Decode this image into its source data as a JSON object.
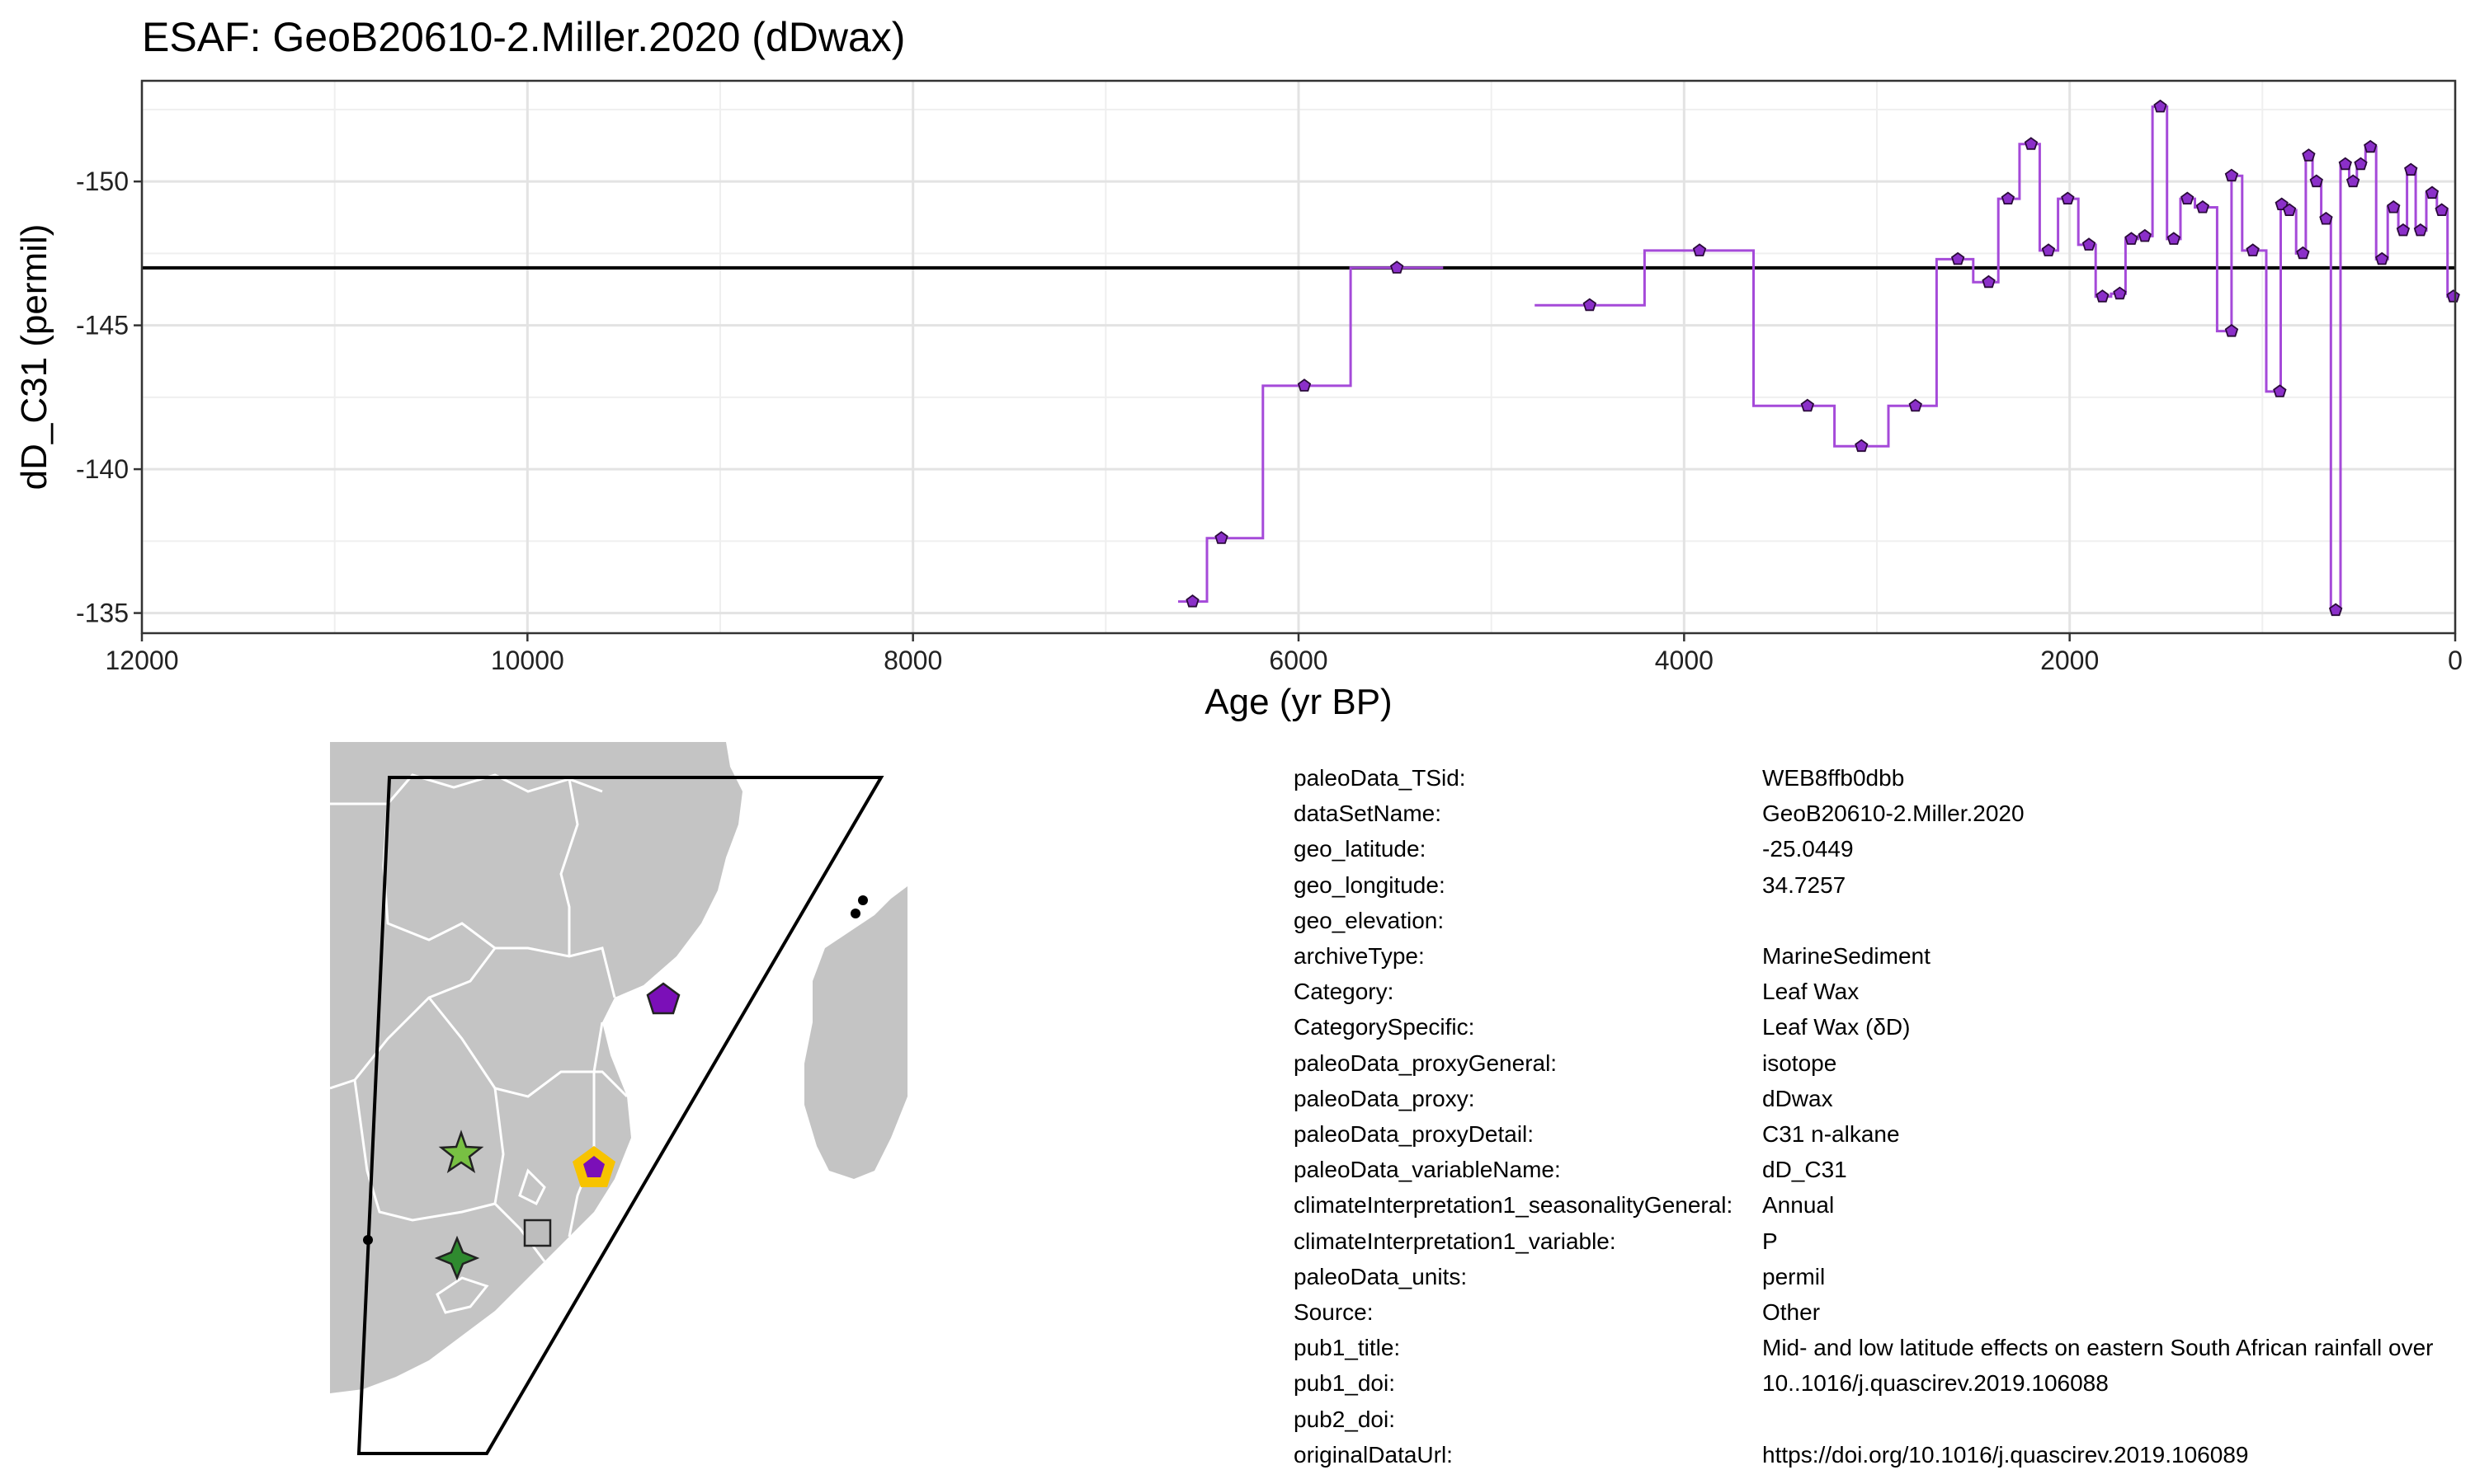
{
  "chart_data": {
    "type": "line",
    "title": "ESAF: GeoB20610-2.Miller.2020 (dDwax)",
    "xlabel": "Age (yr BP)",
    "ylabel": "dD_C31 (permil)",
    "xlim": [
      12000,
      0
    ],
    "ylim": [
      -134.3,
      -153.5
    ],
    "x_ticks": [
      "12000",
      "10000",
      "8000",
      "6000",
      "4000",
      "2000",
      "0"
    ],
    "y_ticks": [
      "-150",
      "-145",
      "-140",
      "-135"
    ],
    "grid": true,
    "x_reversed": true,
    "y_reversed": true,
    "reference_line": -147.0,
    "series": [
      {
        "color": "#8b2fc9",
        "points": [
          [
            6550,
            -135.4
          ],
          [
            6400,
            -137.6
          ],
          [
            5970,
            -142.9
          ],
          [
            5490,
            -147.0
          ],
          [
            4490,
            -145.7
          ],
          [
            3920,
            -147.6
          ],
          [
            3360,
            -142.2
          ],
          [
            3080,
            -140.8
          ],
          [
            2800,
            -142.2
          ],
          [
            2580,
            -147.3
          ],
          [
            2420,
            -146.5
          ],
          [
            2320,
            -149.4
          ],
          [
            2200,
            -151.3
          ],
          [
            2110,
            -147.6
          ],
          [
            2010,
            -149.4
          ],
          [
            1900,
            -147.8
          ],
          [
            1830,
            -146.0
          ],
          [
            1740,
            -146.1
          ],
          [
            1680,
            -148.0
          ],
          [
            1610,
            -148.1
          ],
          [
            1530,
            -152.6
          ],
          [
            1460,
            -148.0
          ],
          [
            1390,
            -149.4
          ],
          [
            1310,
            -149.1
          ],
          [
            1160,
            -144.8
          ],
          [
            1160,
            -150.2
          ],
          [
            1050,
            -147.6
          ],
          [
            910,
            -142.7
          ],
          [
            900,
            -149.2
          ],
          [
            860,
            -149.0
          ],
          [
            790,
            -147.5
          ],
          [
            760,
            -150.9
          ],
          [
            720,
            -150.0
          ],
          [
            670,
            -148.7
          ],
          [
            620,
            -135.1
          ],
          [
            570,
            -150.6
          ],
          [
            530,
            -150.0
          ],
          [
            490,
            -150.6
          ],
          [
            440,
            -151.2
          ],
          [
            380,
            -147.3
          ],
          [
            320,
            -149.1
          ],
          [
            270,
            -148.3
          ],
          [
            230,
            -150.4
          ],
          [
            180,
            -148.3
          ],
          [
            120,
            -149.6
          ],
          [
            70,
            -149.0
          ],
          [
            10,
            -146.0
          ]
        ]
      }
    ]
  },
  "map": {
    "legend": [
      {
        "icon": "purple-pentagon-marker",
        "color": "#7b0fb8"
      },
      {
        "icon": "highlighted-pentagon-marker",
        "color": "#7b0fb8",
        "outline": "#f7c300"
      },
      {
        "icon": "light-green-star-marker",
        "color": "#78c043"
      },
      {
        "icon": "dark-green-four-point-star-marker",
        "color": "#2f8a2f"
      },
      {
        "icon": "grey-square-marker",
        "color": "#bdbdbd"
      }
    ],
    "land_color": "#c4c4c4"
  },
  "metadata": [
    {
      "key": "paleoData_TSid:",
      "value": "WEB8ffb0dbb"
    },
    {
      "key": "dataSetName:",
      "value": "GeoB20610-2.Miller.2020"
    },
    {
      "key": "geo_latitude:",
      "value": "-25.0449"
    },
    {
      "key": "geo_longitude:",
      "value": "34.7257"
    },
    {
      "key": "geo_elevation:",
      "value": ""
    },
    {
      "key": "archiveType:",
      "value": "MarineSediment"
    },
    {
      "key": "Category:",
      "value": "Leaf Wax"
    },
    {
      "key": "CategorySpecific:",
      "value": "Leaf Wax (δD)"
    },
    {
      "key": "paleoData_proxyGeneral:",
      "value": "isotope"
    },
    {
      "key": "paleoData_proxy:",
      "value": "dDwax"
    },
    {
      "key": "paleoData_proxyDetail:",
      "value": "C31 n-alkane"
    },
    {
      "key": "paleoData_variableName:",
      "value": "dD_C31"
    },
    {
      "key": "climateInterpretation1_seasonalityGeneral:",
      "value": "Annual"
    },
    {
      "key": "climateInterpretation1_variable:",
      "value": "P"
    },
    {
      "key": "paleoData_units:",
      "value": "permil"
    },
    {
      "key": "Source:",
      "value": "Other"
    },
    {
      "key": "pub1_title:",
      "value": "Mid- and low latitude effects on eastern South African rainfall over"
    },
    {
      "key": "pub1_doi:",
      "value": "10..1016/j.quascirev.2019.106088"
    },
    {
      "key": "pub2_doi:",
      "value": ""
    },
    {
      "key": "originalDataUrl:",
      "value": "https://doi.org/10.1016/j.quascirev.2019.106089"
    }
  ]
}
